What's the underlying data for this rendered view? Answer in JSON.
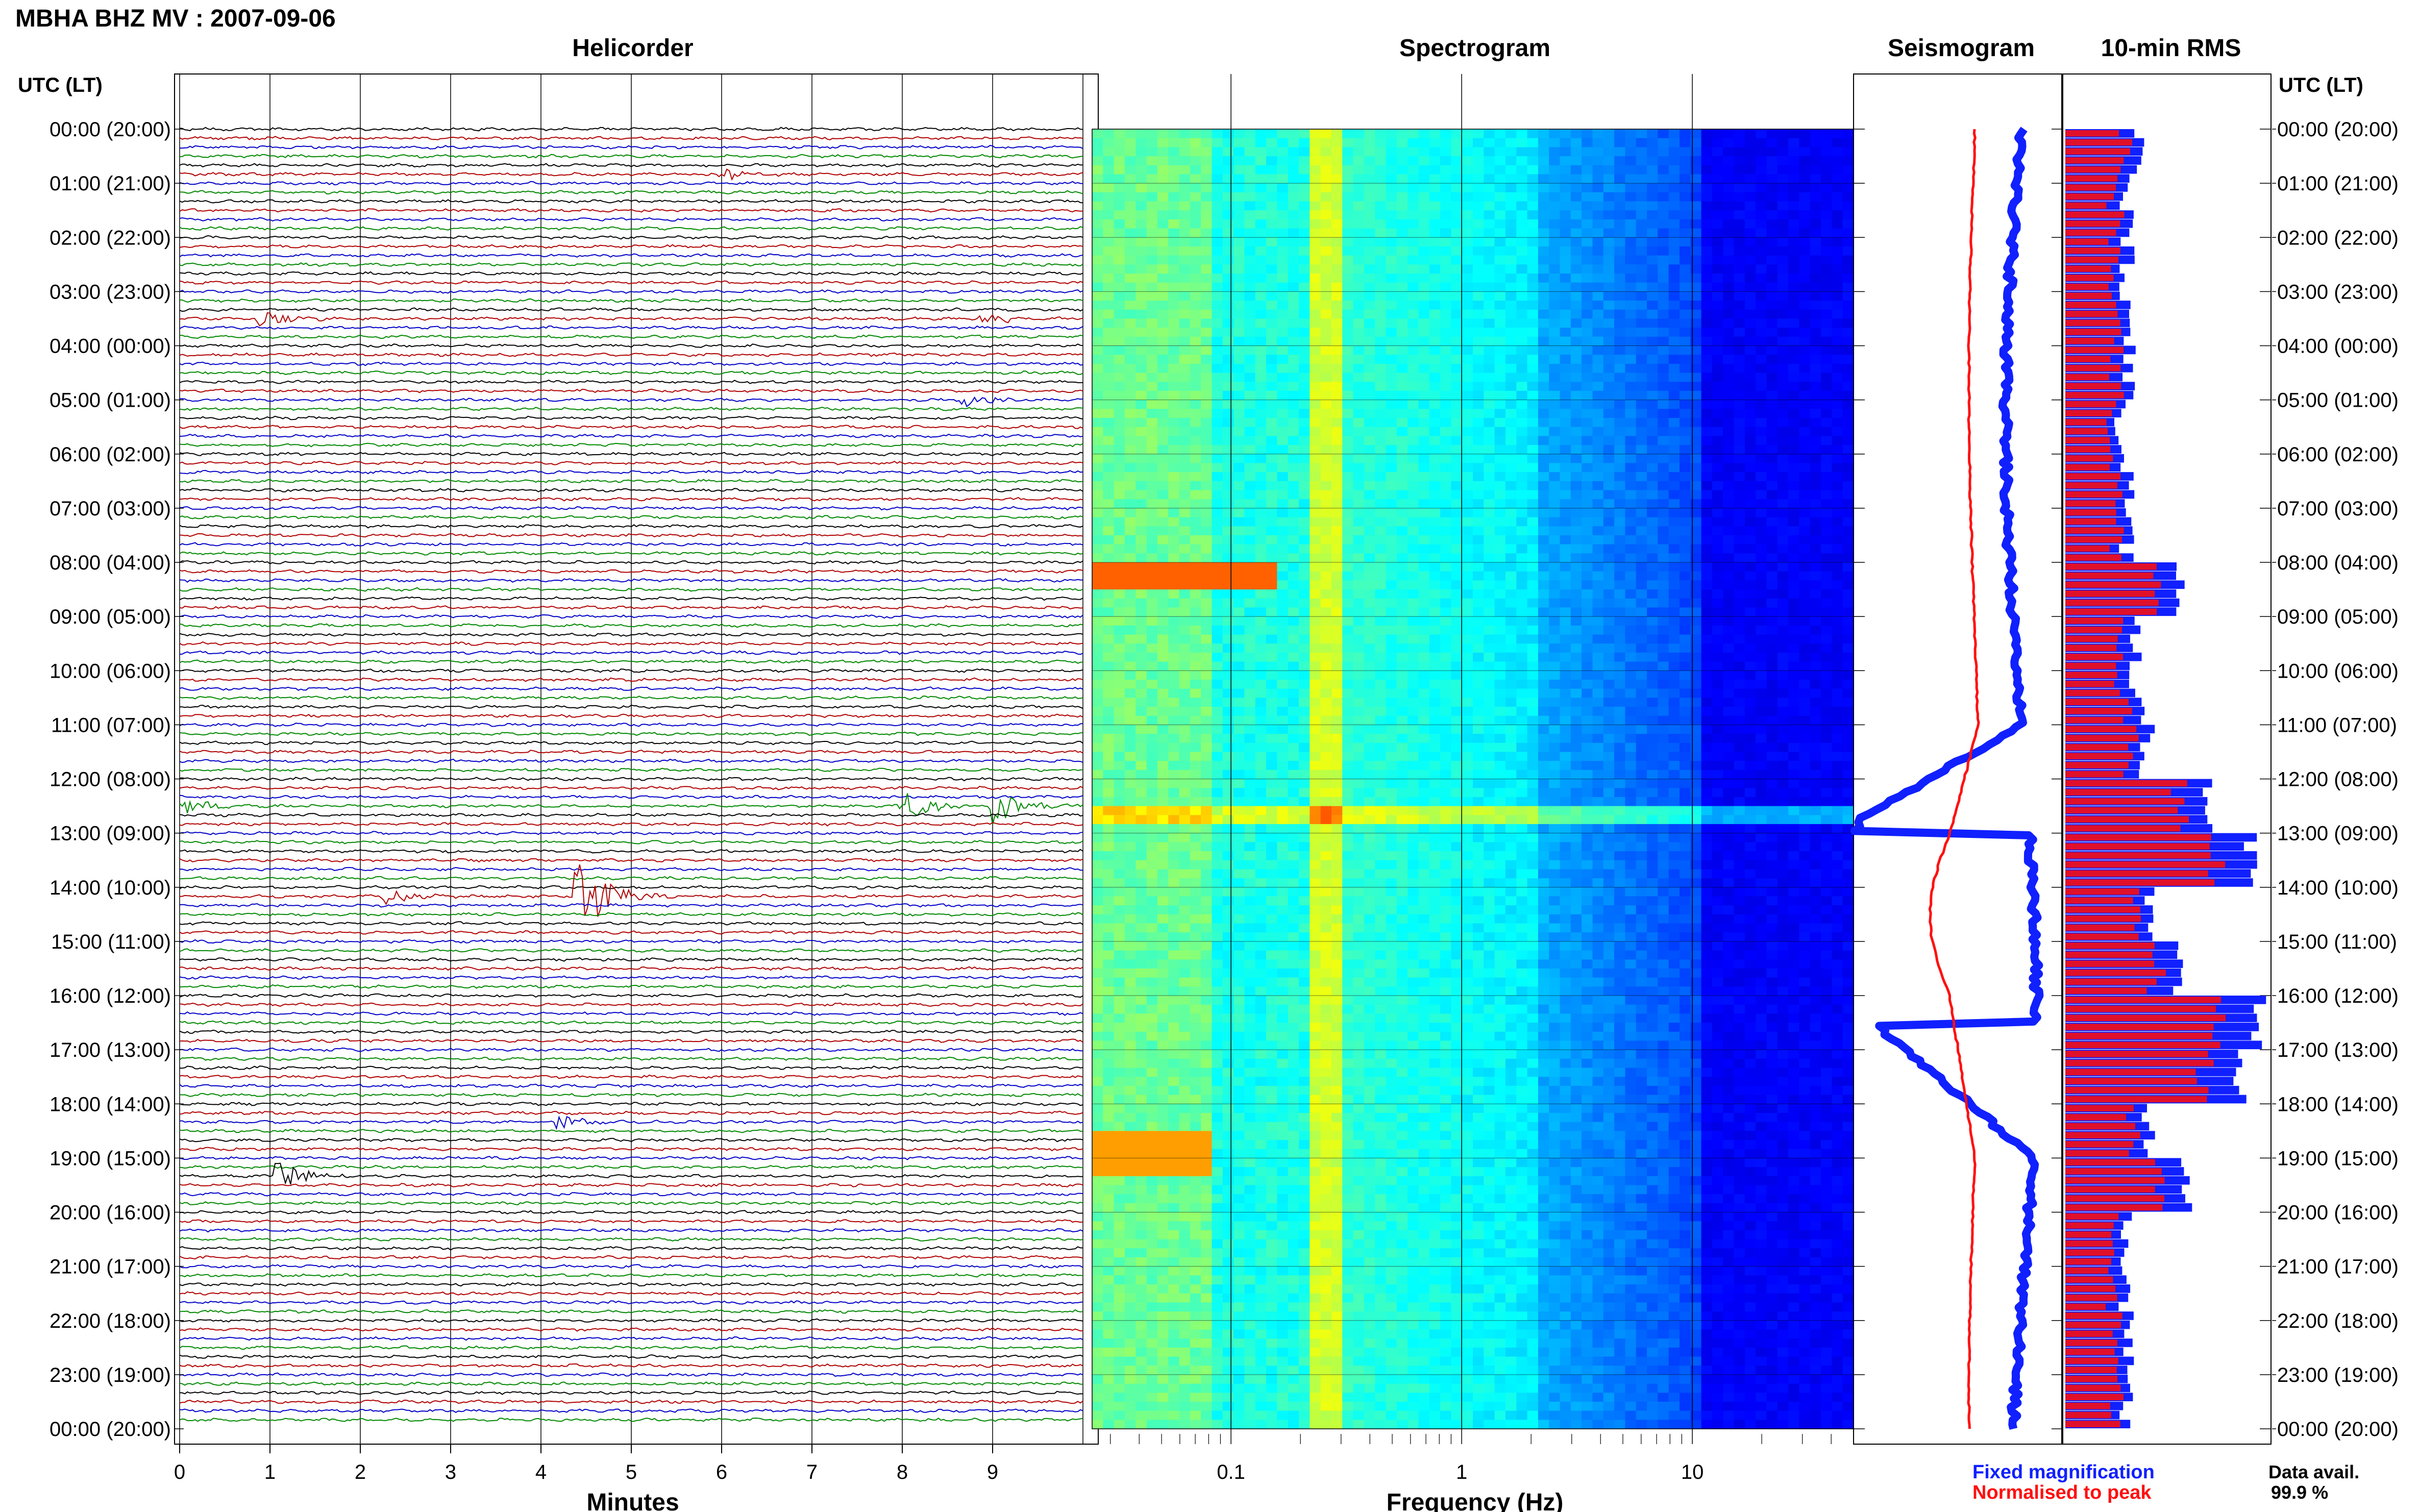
{
  "header": {
    "title": "MBHA BHZ MV : 2007-09-06"
  },
  "panels": {
    "helicorder": "Helicorder",
    "spectrogram": "Spectrogram",
    "seismogram": "Seismogram",
    "rms": "10-min RMS"
  },
  "axis_labels": {
    "time_left": "UTC (LT)",
    "time_right": "UTC (LT)",
    "helicorder_x": "Minutes",
    "spectrogram_x": "Frequency (Hz)"
  },
  "legend": {
    "fixed": "Fixed magnification",
    "normalised": "Normalised to peak",
    "data_avail_label": "Data avail.",
    "data_avail_value": "99.9 %"
  },
  "colors": {
    "trace_cycle": [
      "#000000",
      "#b00000",
      "#0000c8",
      "#008800"
    ],
    "fixed_series": "#1020ff",
    "normalised_series": "#ff1010",
    "rms_fixed_bar": "#1020ff",
    "rms_normalised_bar": "#e0102a"
  },
  "chart_data": [
    {
      "type": "line",
      "name": "helicorder",
      "title": "Helicorder",
      "xlabel": "Minutes",
      "xticks": [
        "0",
        "1",
        "2",
        "3",
        "4",
        "5",
        "6",
        "7",
        "8",
        "9"
      ],
      "xlim": [
        0,
        10
      ],
      "time_ticks": [
        "00:00 (20:00)",
        "01:00 (21:00)",
        "02:00 (22:00)",
        "03:00 (23:00)",
        "04:00 (00:00)",
        "05:00 (01:00)",
        "06:00 (02:00)",
        "07:00 (03:00)",
        "08:00 (04:00)",
        "09:00 (05:00)",
        "10:00 (06:00)",
        "11:00 (07:00)",
        "12:00 (08:00)",
        "13:00 (09:00)",
        "14:00 (10:00)",
        "15:00 (11:00)",
        "16:00 (12:00)",
        "17:00 (13:00)",
        "18:00 (14:00)",
        "19:00 (15:00)",
        "20:00 (16:00)",
        "21:00 (17:00)",
        "22:00 (18:00)",
        "23:00 (19:00)",
        "00:00 (20:00)"
      ],
      "rows": 144,
      "minutes_per_row": 10,
      "events": [
        {
          "row": 5,
          "minute": 6.0,
          "amp": 1.2
        },
        {
          "row": 21,
          "minute": 0.9,
          "amp": 1.4
        },
        {
          "row": 21,
          "minute": 8.9,
          "amp": 1.2
        },
        {
          "row": 30,
          "minute": 8.7,
          "amp": 1.4
        },
        {
          "row": 75,
          "minute": 8.0,
          "amp": 3.2
        },
        {
          "row": 75,
          "minute": 9.0,
          "amp": 3.8
        },
        {
          "row": 75,
          "minute": 0.0,
          "amp": 1.5
        },
        {
          "row": 85,
          "minute": 2.3,
          "amp": 2.0
        },
        {
          "row": 85,
          "minute": 4.4,
          "amp": 9.0
        },
        {
          "row": 110,
          "minute": 4.2,
          "amp": 1.6
        },
        {
          "row": 116,
          "minute": 1.1,
          "amp": 2.6
        }
      ]
    },
    {
      "type": "heatmap",
      "name": "spectrogram",
      "title": "Spectrogram",
      "xlabel": "Frequency (Hz)",
      "xscale": "log",
      "xlim": [
        0.025,
        50
      ],
      "xticks": [
        "0.1",
        "1",
        "10"
      ],
      "note_colormap": "jet"
    },
    {
      "type": "line",
      "name": "seismogram",
      "title": "Seismogram",
      "series": [
        {
          "name": "Fixed magnification",
          "color": "#1020ff"
        },
        {
          "name": "Normalised to peak",
          "color": "#ff1010"
        }
      ]
    },
    {
      "type": "bar",
      "name": "rms",
      "title": "10-min RMS",
      "orientation": "horizontal",
      "series": [
        {
          "name": "Fixed magnification",
          "color": "#1020ff"
        },
        {
          "name": "Normalised to peak",
          "color": "#e0102a"
        }
      ],
      "hourly_level": [
        0.35,
        0.3,
        0.3,
        0.3,
        0.32,
        0.28,
        0.3,
        0.3,
        0.55,
        0.35,
        0.35,
        0.4,
        0.7,
        0.9,
        0.4,
        0.55,
        0.95,
        0.85,
        0.4,
        0.6,
        0.3,
        0.3,
        0.3,
        0.3
      ]
    }
  ]
}
